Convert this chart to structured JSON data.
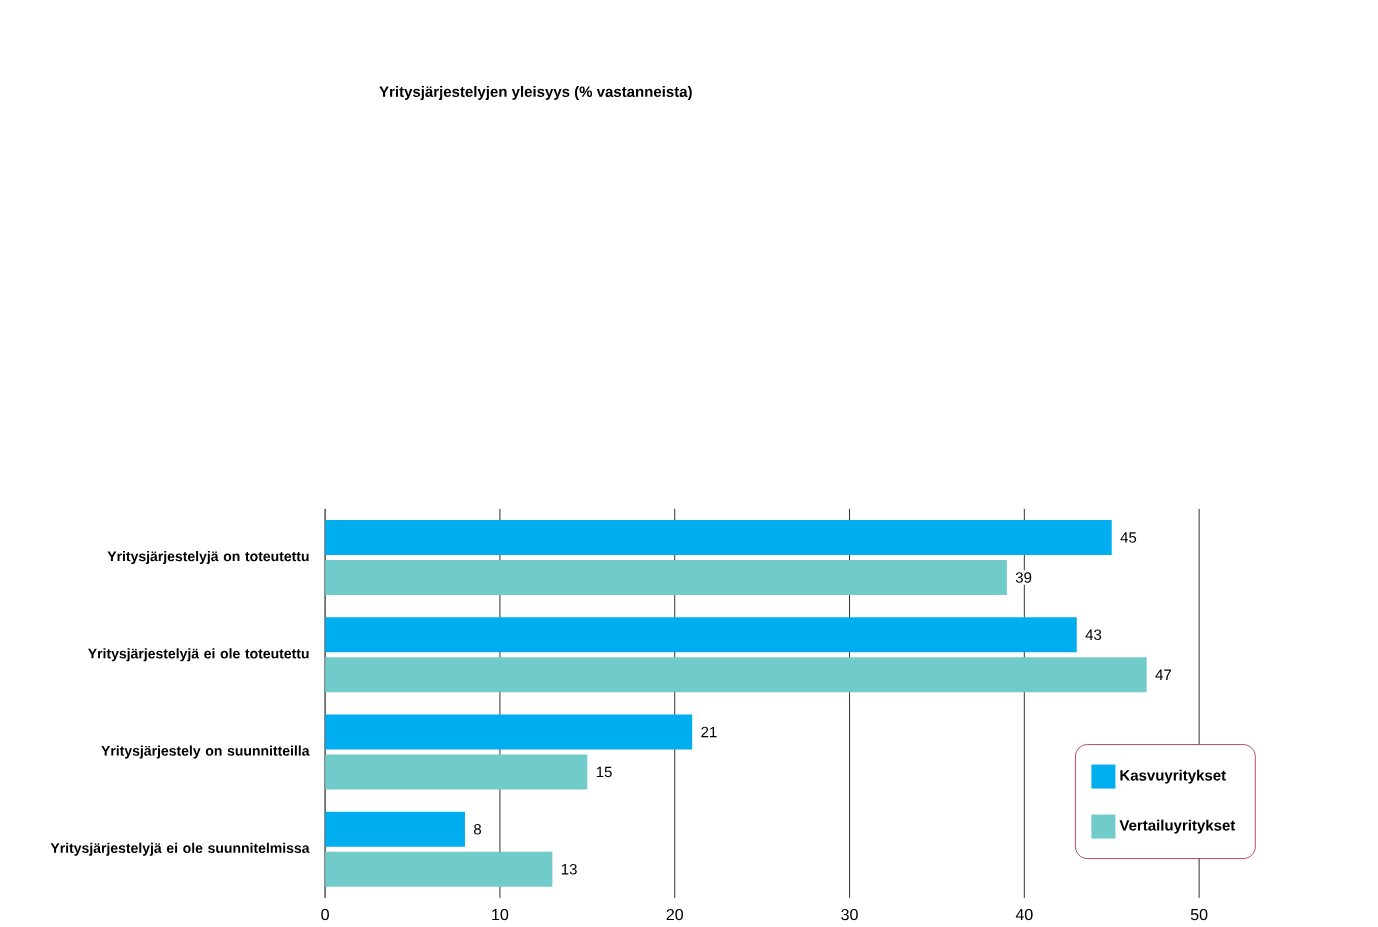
{
  "chart_data": {
    "type": "bar",
    "orientation": "horizontal",
    "title": "Yritysjärjestelyjen yleisyys (% vastanneista)",
    "categories": [
      "Yritysjärjestelyjä on toteutettu",
      "Yritysjärjestelyjä ei ole toteutettu",
      "Yritysjärjestely on suunnitteilla",
      "Yritysjärjestelyjä ei ole suunnitelmissa"
    ],
    "series": [
      {
        "name": "Kasvuyritykset",
        "color": "#00aeef",
        "values": [
          45,
          43,
          21,
          8
        ]
      },
      {
        "name": "Vertailuyritykset",
        "color": "#72cbcb",
        "values": [
          39,
          47,
          15,
          13
        ]
      }
    ],
    "xlim": [
      0,
      50
    ],
    "xticks": [
      0,
      10,
      20,
      30,
      40,
      50
    ],
    "grid": "x",
    "legend": "right",
    "data_labels": true
  }
}
